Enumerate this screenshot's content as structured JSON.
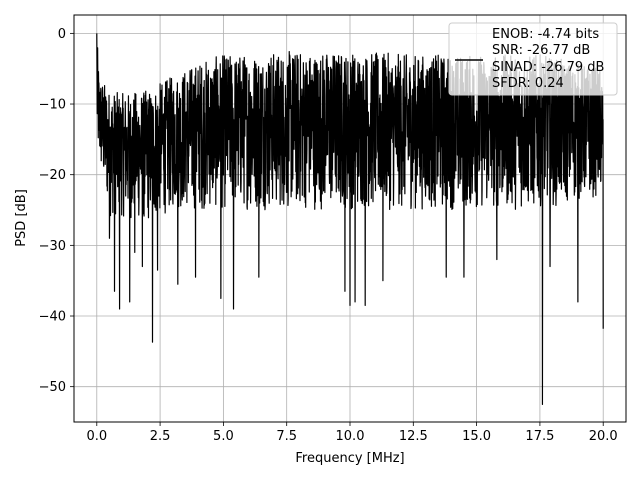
{
  "chart_data": {
    "type": "line",
    "xlabel": "Frequency [MHz]",
    "ylabel": "PSD [dB]",
    "xlim": [
      -0.9,
      20.9
    ],
    "ylim": [
      -55,
      2.6
    ],
    "xticks": [
      0.0,
      2.5,
      5.0,
      7.5,
      10.0,
      12.5,
      15.0,
      17.5,
      20.0
    ],
    "xtick_labels": [
      "0.0",
      "2.5",
      "5.0",
      "7.5",
      "10.0",
      "12.5",
      "15.0",
      "17.5",
      "20.0"
    ],
    "yticks": [
      0,
      -10,
      -20,
      -30,
      -40,
      -50
    ],
    "ytick_labels": [
      "0",
      "−10",
      "−20",
      "−30",
      "−40",
      "−50"
    ],
    "grid": true,
    "legend_position": "top-right",
    "legend_lines": [
      "ENOB: -4.74 bits",
      "SNR: -26.77 dB",
      "SINAD: -26.79 dB",
      "SFDR: 0.24"
    ],
    "series": [
      {
        "color": "#000000",
        "description": "noisy power spectral density, approx. 0 to 20 MHz",
        "upper_envelope": [
          [
            0.0,
            0.0
          ],
          [
            0.1,
            -6.0
          ],
          [
            0.5,
            -8.0
          ],
          [
            1.0,
            -8.5
          ],
          [
            2.0,
            -8.0
          ],
          [
            3.0,
            -6.0
          ],
          [
            4.0,
            -4.0
          ],
          [
            5.0,
            -3.0
          ],
          [
            7.5,
            -2.5
          ],
          [
            10.0,
            -2.5
          ],
          [
            12.5,
            -3.0
          ],
          [
            15.0,
            -3.0
          ],
          [
            17.5,
            -3.0
          ],
          [
            20.0,
            -5.0
          ]
        ],
        "lower_envelope": [
          [
            0.0,
            -17.0
          ],
          [
            0.5,
            -26.0
          ],
          [
            1.0,
            -26.0
          ],
          [
            2.0,
            -27.0
          ],
          [
            3.0,
            -25.0
          ],
          [
            5.0,
            -25.0
          ],
          [
            7.5,
            -25.0
          ],
          [
            10.0,
            -25.0
          ],
          [
            12.5,
            -25.0
          ],
          [
            15.0,
            -25.0
          ],
          [
            17.5,
            -25.0
          ],
          [
            20.0,
            -23.0
          ]
        ],
        "dips": [
          [
            0.5,
            -29.0
          ],
          [
            0.7,
            -36.5
          ],
          [
            0.9,
            -39.0
          ],
          [
            1.3,
            -38.0
          ],
          [
            1.5,
            -31.0
          ],
          [
            1.8,
            -33.0
          ],
          [
            2.2,
            -43.7
          ],
          [
            2.4,
            -33.5
          ],
          [
            3.2,
            -35.5
          ],
          [
            3.9,
            -34.5
          ],
          [
            4.9,
            -37.5
          ],
          [
            5.4,
            -39.0
          ],
          [
            6.4,
            -34.5
          ],
          [
            9.8,
            -36.5
          ],
          [
            10.0,
            -38.5
          ],
          [
            10.2,
            -38.0
          ],
          [
            10.6,
            -38.5
          ],
          [
            11.3,
            -35.0
          ],
          [
            13.8,
            -34.5
          ],
          [
            14.5,
            -34.5
          ],
          [
            15.8,
            -32.0
          ],
          [
            17.6,
            -52.5
          ],
          [
            17.9,
            -33.0
          ],
          [
            19.0,
            -38.0
          ],
          [
            20.0,
            -41.8
          ]
        ]
      }
    ]
  }
}
